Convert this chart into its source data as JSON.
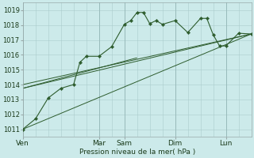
{
  "bg_color": "#cceaea",
  "grid_color_major": "#aacccc",
  "grid_color_minor": "#bbdddd",
  "line_color": "#2d5c2d",
  "ylim": [
    1010.5,
    1019.5
  ],
  "xlim": [
    0,
    108
  ],
  "ylabel_ticks": [
    1011,
    1012,
    1013,
    1014,
    1015,
    1016,
    1017,
    1018,
    1019
  ],
  "xlabel": "Pression niveau de la mer( hPa )",
  "day_labels": [
    "Ven",
    "Mar",
    "Sam",
    "Dim",
    "Lun"
  ],
  "day_x": [
    0,
    36,
    48,
    72,
    96
  ],
  "series": [
    [
      0,
      1011.0
    ],
    [
      6,
      1011.7
    ],
    [
      12,
      1013.1
    ],
    [
      18,
      1013.75
    ],
    [
      24,
      1014.0
    ],
    [
      27,
      1015.5
    ],
    [
      30,
      1015.9
    ],
    [
      36,
      1015.9
    ],
    [
      42,
      1016.55
    ],
    [
      48,
      1018.05
    ],
    [
      51,
      1018.3
    ],
    [
      54,
      1018.85
    ],
    [
      57,
      1018.85
    ],
    [
      60,
      1018.1
    ],
    [
      63,
      1018.3
    ],
    [
      66,
      1018.05
    ],
    [
      72,
      1018.3
    ],
    [
      78,
      1017.5
    ],
    [
      84,
      1018.45
    ],
    [
      87,
      1018.45
    ],
    [
      90,
      1017.35
    ],
    [
      93,
      1016.6
    ],
    [
      96,
      1016.6
    ],
    [
      102,
      1017.45
    ],
    [
      108,
      1017.4
    ]
  ],
  "trend_lines": [
    [
      [
        0,
        1011.0
      ],
      [
        108,
        1017.4
      ]
    ],
    [
      [
        0,
        1013.75
      ],
      [
        108,
        1017.4
      ]
    ],
    [
      [
        0,
        1014.0
      ],
      [
        108,
        1017.4
      ]
    ],
    [
      [
        0,
        1013.75
      ],
      [
        54,
        1015.8
      ]
    ]
  ],
  "figsize": [
    3.2,
    2.0
  ],
  "dpi": 100
}
